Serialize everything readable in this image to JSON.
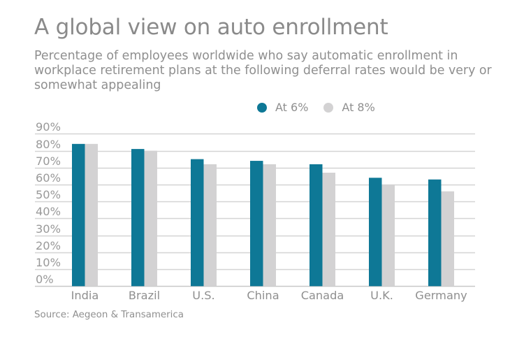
{
  "colors": {
    "series_6": "#0e7896",
    "series_8": "#d3d2d3",
    "grid": "#d4d4d4",
    "text": "#8c8c8c"
  },
  "header": {
    "title": "A global view on auto enrollment",
    "subtitle": "Percentage of employees worldwide who say automatic enrollment in workplace retirement plans at the following deferral rates would be very or somewhat appealing"
  },
  "source": "Source: Aegeon & Transamerica",
  "chart_data": {
    "type": "bar",
    "title": "A global view on auto enrollment",
    "subtitle": "Percentage of employees worldwide who say automatic enrollment in workplace retirement plans at the following deferral rates would be very or somewhat appealing",
    "xlabel": "",
    "ylabel": "",
    "categories": [
      "India",
      "Brazil",
      "U.S.",
      "China",
      "Canada",
      "U.K.",
      "Germany"
    ],
    "series": [
      {
        "name": "At 6%",
        "color": "#0e7896",
        "values": [
          84,
          81,
          75,
          74,
          72,
          64,
          63
        ]
      },
      {
        "name": "At 8%",
        "color": "#d3d2d3",
        "values": [
          84,
          80,
          72,
          72,
          67,
          60,
          56
        ]
      }
    ],
    "ylim": [
      0,
      90
    ],
    "yticks": [
      0,
      10,
      20,
      30,
      40,
      50,
      60,
      70,
      80,
      90
    ],
    "ytick_labels": [
      "0%",
      "10%",
      "20%",
      "30%",
      "40%",
      "50%",
      "60%",
      "70%",
      "80%",
      "90%"
    ],
    "grid": true,
    "legend_position": "top-right"
  }
}
